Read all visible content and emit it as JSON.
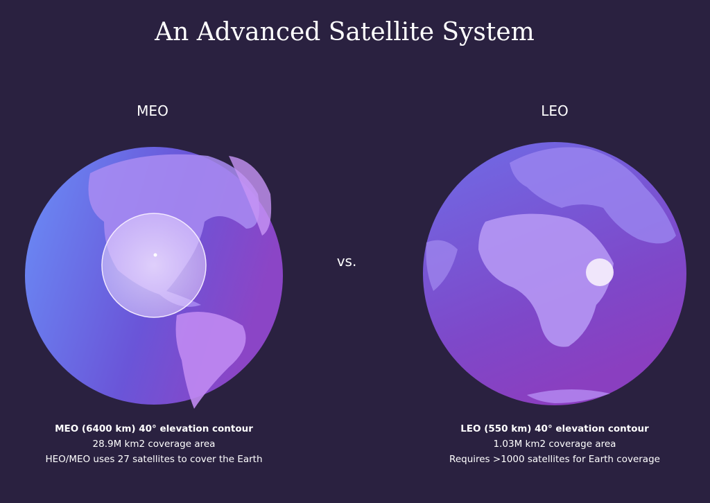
{
  "title": "An Advanced Satellite System",
  "vs": "vs.",
  "panels": [
    {
      "label": "MEO",
      "caption": [
        "MEO (6400 km) 40° elevation contour",
        "28.9M km2 coverage area",
        "HEO/MEO uses 27 satellites to cover the Earth"
      ]
    },
    {
      "label": "LEO",
      "caption": [
        "LEO (550 km) 40° elevation contour",
        "1.03M km2 coverage area",
        "Requires >1000 satellites for Earth coverage"
      ]
    }
  ]
}
